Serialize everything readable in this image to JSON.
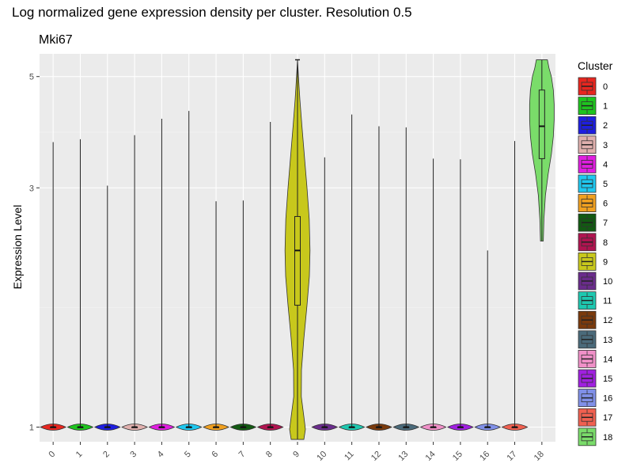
{
  "chart_data": {
    "type": "violin",
    "title": "Log normalized gene expression density per cluster. Resolution 0.5",
    "subtitle": "Mki67",
    "xlabel": "",
    "ylabel": "Expression Level",
    "y_scale": "log",
    "ylim": [
      0.935,
      5.55
    ],
    "y_ticks": [
      1,
      3,
      5
    ],
    "grid": true,
    "legend": {
      "title": "Cluster",
      "position": "right"
    },
    "categories": [
      "0",
      "1",
      "2",
      "3",
      "4",
      "5",
      "6",
      "7",
      "8",
      "9",
      "10",
      "11",
      "12",
      "13",
      "14",
      "15",
      "16",
      "17",
      "18"
    ],
    "colors": [
      "#e8261f",
      "#1ec41e",
      "#1e1ee0",
      "#e0b0ae",
      "#e01ee0",
      "#1ec8f0",
      "#f0a020",
      "#125a12",
      "#b01450",
      "#c8c81c",
      "#6a2c8c",
      "#1ec8b0",
      "#7a3a0c",
      "#4a6a7a",
      "#f090c8",
      "#a020e0",
      "#8090e8",
      "#f06050",
      "#7adc6a"
    ],
    "series": [
      {
        "cluster": "0",
        "max": 3.7,
        "min": 1,
        "median": 1,
        "q1": 1,
        "q3": 1
      },
      {
        "cluster": "1",
        "max": 3.75,
        "min": 1,
        "median": 1,
        "q1": 1,
        "q3": 1
      },
      {
        "cluster": "2",
        "max": 3.03,
        "min": 1,
        "median": 1,
        "q1": 1,
        "q3": 1
      },
      {
        "cluster": "3",
        "max": 3.82,
        "min": 1,
        "median": 1,
        "q1": 1,
        "q3": 1
      },
      {
        "cluster": "4",
        "max": 4.12,
        "min": 1,
        "median": 1,
        "q1": 1,
        "q3": 1
      },
      {
        "cluster": "5",
        "max": 4.27,
        "min": 1,
        "median": 1,
        "q1": 1,
        "q3": 1
      },
      {
        "cluster": "6",
        "max": 2.82,
        "min": 1,
        "median": 1,
        "q1": 1,
        "q3": 1
      },
      {
        "cluster": "7",
        "max": 2.83,
        "min": 1,
        "median": 1,
        "q1": 1,
        "q3": 1
      },
      {
        "cluster": "8",
        "max": 4.06,
        "min": 1,
        "median": 1,
        "q1": 1,
        "q3": 1
      },
      {
        "cluster": "9",
        "max": 5.4,
        "min": 0.945,
        "median": 2.25,
        "q1": 1.75,
        "q3": 2.63
      },
      {
        "cluster": "10",
        "max": 3.45,
        "min": 1,
        "median": 1,
        "q1": 1,
        "q3": 1
      },
      {
        "cluster": "11",
        "max": 4.2,
        "min": 1,
        "median": 1,
        "q1": 1,
        "q3": 1
      },
      {
        "cluster": "12",
        "max": 3.98,
        "min": 1,
        "median": 1,
        "q1": 1,
        "q3": 1
      },
      {
        "cluster": "13",
        "max": 3.96,
        "min": 1,
        "median": 1,
        "q1": 1,
        "q3": 1
      },
      {
        "cluster": "14",
        "max": 3.43,
        "min": 1,
        "median": 1,
        "q1": 1,
        "q3": 1
      },
      {
        "cluster": "15",
        "max": 3.42,
        "min": 1,
        "median": 1,
        "q1": 1,
        "q3": 1
      },
      {
        "cluster": "16",
        "max": 2.25,
        "min": 1,
        "median": 1,
        "q1": 1,
        "q3": 1
      },
      {
        "cluster": "17",
        "max": 3.72,
        "min": 1,
        "median": 1,
        "q1": 1,
        "q3": 1
      },
      {
        "cluster": "18",
        "max": 5.4,
        "min": 2.35,
        "median": 3.98,
        "q1": 3.43,
        "q3": 4.7
      }
    ]
  }
}
